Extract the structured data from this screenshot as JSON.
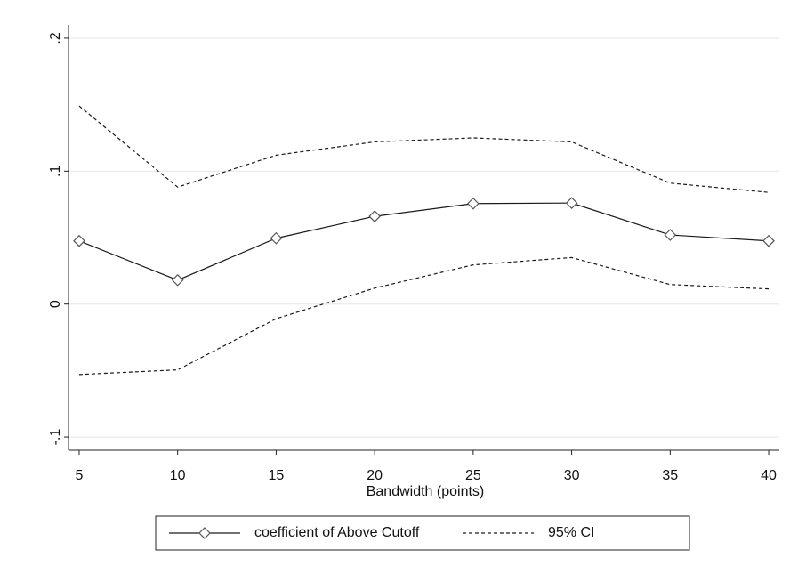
{
  "chart_data": {
    "type": "line",
    "x": [
      5,
      10,
      15,
      20,
      25,
      30,
      35,
      40
    ],
    "xlabel": "Bandwidth (points)",
    "series": [
      {
        "name": "coefficient of Above Cutoff",
        "color": "#1a1a1a",
        "marker": "diamond",
        "values": [
          0.0475,
          0.018,
          0.0495,
          0.066,
          0.0756,
          0.076,
          0.052,
          0.0475
        ]
      },
      {
        "name": "95% CI",
        "color": "#1a1a1a",
        "dashed": true,
        "upper": [
          0.149,
          0.088,
          0.112,
          0.122,
          0.125,
          0.122,
          0.091,
          0.084
        ],
        "lower": [
          -0.053,
          -0.0495,
          -0.011,
          0.012,
          0.0295,
          0.035,
          0.0147,
          0.0114
        ]
      }
    ],
    "xlim": [
      4.46,
      40.54
    ],
    "xticks": [
      5,
      10,
      15,
      20,
      25,
      30,
      35,
      40
    ],
    "ylim": [
      -0.11,
      0.21
    ],
    "yticks": [
      {
        "value": -0.1,
        "label": "-.1"
      },
      0,
      {
        "value": 0.1,
        "label": ".1"
      },
      {
        "value": 0.2,
        "label": ".2"
      }
    ],
    "grid": true,
    "legend": "bottom"
  }
}
